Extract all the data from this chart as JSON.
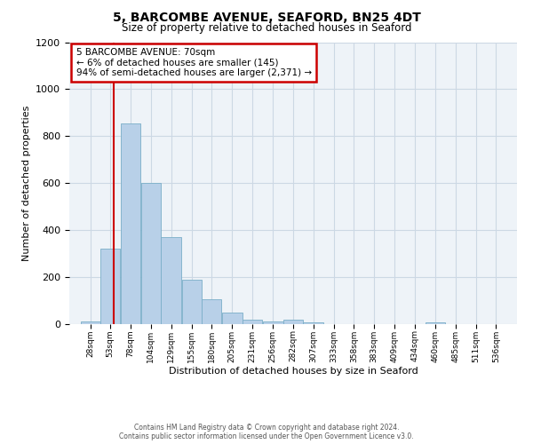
{
  "title": "5, BARCOMBE AVENUE, SEAFORD, BN25 4DT",
  "subtitle": "Size of property relative to detached houses in Seaford",
  "xlabel": "Distribution of detached houses by size in Seaford",
  "ylabel": "Number of detached properties",
  "bar_color": "#b8d0e8",
  "bar_edge_color": "#7aaec8",
  "bin_labels": [
    "28sqm",
    "53sqm",
    "78sqm",
    "104sqm",
    "129sqm",
    "155sqm",
    "180sqm",
    "205sqm",
    "231sqm",
    "256sqm",
    "282sqm",
    "307sqm",
    "333sqm",
    "358sqm",
    "383sqm",
    "409sqm",
    "434sqm",
    "460sqm",
    "485sqm",
    "511sqm",
    "536sqm"
  ],
  "bar_values": [
    10,
    320,
    855,
    600,
    370,
    190,
    105,
    48,
    18,
    12,
    20,
    8,
    0,
    0,
    0,
    0,
    0,
    8,
    0,
    0,
    0
  ],
  "bin_edges": [
    28,
    53,
    78,
    104,
    129,
    155,
    180,
    205,
    231,
    256,
    282,
    307,
    333,
    358,
    383,
    409,
    434,
    460,
    485,
    511,
    536,
    561
  ],
  "vline_x": 70,
  "vline_color": "#cc0000",
  "ylim": [
    0,
    1200
  ],
  "yticks": [
    0,
    200,
    400,
    600,
    800,
    1000,
    1200
  ],
  "annotation_line1": "5 BARCOMBE AVENUE: 70sqm",
  "annotation_line2": "← 6% of detached houses are smaller (145)",
  "annotation_line3": "94% of semi-detached houses are larger (2,371) →",
  "annotation_box_color": "#ffffff",
  "annotation_box_edge": "#cc0000",
  "footer1": "Contains HM Land Registry data © Crown copyright and database right 2024.",
  "footer2": "Contains public sector information licensed under the Open Government Licence v3.0.",
  "background_color": "#ffffff",
  "plot_bg_color": "#eef3f8",
  "grid_color": "#ccd8e4"
}
